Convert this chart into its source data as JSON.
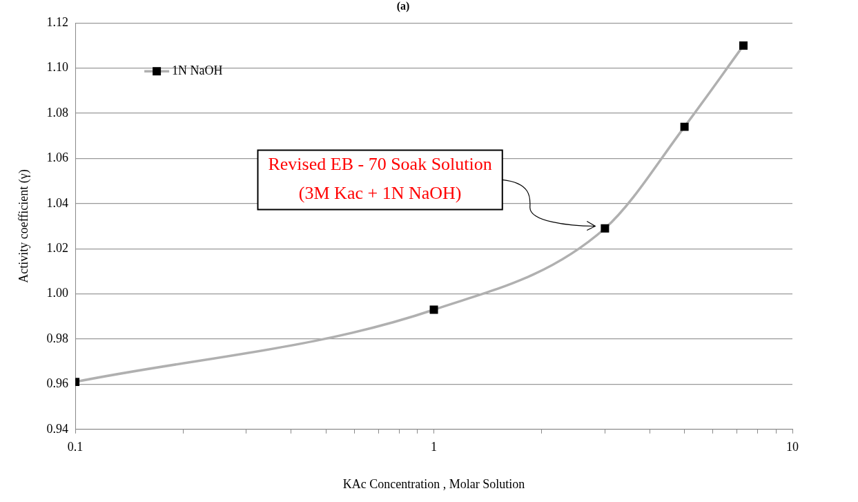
{
  "chart_data": {
    "type": "line",
    "title": "(a)",
    "xlabel": "KAc Concentration , Molar Solution",
    "ylabel": "Activity coefficient (γ)",
    "log": "x",
    "grid": "y",
    "legend": "top left",
    "marker": "square",
    "line_style": "solid",
    "xlim": [
      0.1,
      10
    ],
    "xticks": [
      0.1,
      {
        "value": 0.2,
        "label": null
      },
      {
        "value": 0.3,
        "label": null
      },
      {
        "value": 0.4,
        "label": null
      },
      {
        "value": 0.5,
        "label": null
      },
      {
        "value": 0.6,
        "label": null
      },
      {
        "value": 0.7,
        "label": null
      },
      {
        "value": 0.8,
        "label": null
      },
      {
        "value": 0.9,
        "label": null
      },
      1,
      {
        "value": 2,
        "label": null
      },
      {
        "value": 3,
        "label": null
      },
      {
        "value": 4,
        "label": null
      },
      {
        "value": 5,
        "label": null
      },
      {
        "value": 6,
        "label": null
      },
      {
        "value": 7,
        "label": null
      },
      {
        "value": 8,
        "label": null
      },
      {
        "value": 9,
        "label": null
      },
      10
    ],
    "ylim": [
      0.94,
      1.12
    ],
    "yticks": [
      {
        "value": 0.94,
        "label": "0.94"
      },
      {
        "value": 0.96,
        "label": "0.96"
      },
      {
        "value": 0.98,
        "label": "0.98"
      },
      {
        "value": 1.0,
        "label": "1.00"
      },
      {
        "value": 1.02,
        "label": "1.02"
      },
      {
        "value": 1.04,
        "label": "1.04"
      },
      {
        "value": 1.06,
        "label": "1.06"
      },
      {
        "value": 1.08,
        "label": "1.08"
      },
      {
        "value": 1.1,
        "label": "1.10"
      },
      {
        "value": 1.12,
        "label": "1.12"
      }
    ],
    "x": [
      0.1,
      1,
      3,
      5,
      7.3
    ],
    "series": [
      {
        "name": "1N NaOH",
        "color": "#b0b0b0",
        "values": [
          0.961,
          0.993,
          1.029,
          1.074,
          1.11
        ]
      }
    ],
    "annotations": [
      "Revised EB - 70 Soak Solution\n(3M Kac + 1N NaOH)"
    ]
  }
}
